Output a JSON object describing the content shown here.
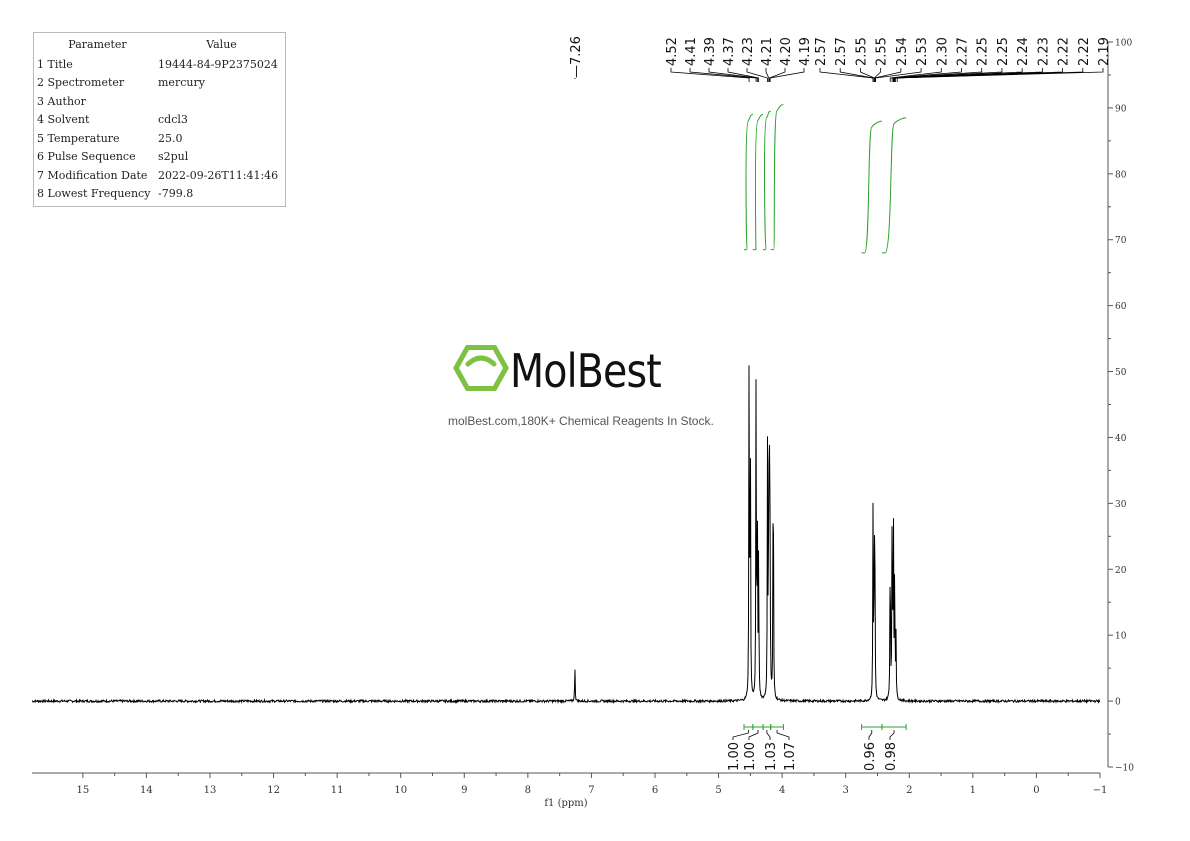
{
  "parameters": {
    "header_param": "Parameter",
    "header_value": "Value",
    "rows": [
      {
        "name": "1 Title",
        "value": "19444-84-9P2375024"
      },
      {
        "name": "2 Spectrometer",
        "value": "mercury"
      },
      {
        "name": "3 Author",
        "value": ""
      },
      {
        "name": "4 Solvent",
        "value": "cdcl3"
      },
      {
        "name": "5 Temperature",
        "value": "25.0"
      },
      {
        "name": "6 Pulse Sequence",
        "value": "s2pul"
      },
      {
        "name": "7 Modification Date",
        "value": "2022-09-26T11:41:46"
      },
      {
        "name": "8 Lowest Frequency",
        "value": "-799.8"
      }
    ]
  },
  "watermark": {
    "name": "MolBest",
    "tagline": "molBest.com,180K+ Chemical Reagents In Stock.",
    "color": "#7dc242"
  },
  "chart_data": {
    "type": "line",
    "title": "",
    "xlabel": "f1 (ppm)",
    "ylabel": "",
    "xlim": [
      15.8,
      -1.0
    ],
    "ylim": [
      -10,
      100
    ],
    "x_reversed": true,
    "x_ticks": [
      15,
      14,
      13,
      12,
      11,
      10,
      9,
      8,
      7,
      6,
      5,
      4,
      3,
      2,
      1,
      0,
      -1
    ],
    "y_ticks": [
      -10,
      0,
      10,
      20,
      30,
      40,
      50,
      60,
      70,
      80,
      90,
      100
    ],
    "grid": false,
    "line_color": "#000000",
    "integral_color": "#2ca02c",
    "peaks": [
      {
        "ppm": 7.26,
        "height": 5.5
      },
      {
        "ppm": 4.52,
        "height": 53.5
      },
      {
        "ppm": 4.5,
        "height": 43.0
      },
      {
        "ppm": 4.41,
        "height": 50.5
      },
      {
        "ppm": 4.39,
        "height": 30.0
      },
      {
        "ppm": 4.37,
        "height": 24.0
      },
      {
        "ppm": 4.23,
        "height": 37.5
      },
      {
        "ppm": 4.21,
        "height": 36.5
      },
      {
        "ppm": 4.2,
        "height": 30.0
      },
      {
        "ppm": 4.19,
        "height": 22.0
      },
      {
        "ppm": 4.14,
        "height": 45.0
      },
      {
        "ppm": 2.57,
        "height": 29.5
      },
      {
        "ppm": 2.55,
        "height": 27.0
      },
      {
        "ppm": 2.54,
        "height": 16.0
      },
      {
        "ppm": 2.3,
        "height": 26.0
      },
      {
        "ppm": 2.27,
        "height": 29.0
      },
      {
        "ppm": 2.25,
        "height": 28.5
      },
      {
        "ppm": 2.23,
        "height": 22.0
      },
      {
        "ppm": 2.21,
        "height": 10.0
      }
    ],
    "peak_labels": [
      {
        "text": "7.26",
        "ppm": 7.26
      },
      {
        "text": "4.52",
        "ppm": 4.52
      },
      {
        "text": "4.41",
        "ppm": 4.41
      },
      {
        "text": "4.39",
        "ppm": 4.39
      },
      {
        "text": "4.37",
        "ppm": 4.37
      },
      {
        "text": "4.23",
        "ppm": 4.23
      },
      {
        "text": "4.21",
        "ppm": 4.21
      },
      {
        "text": "4.20",
        "ppm": 4.2
      },
      {
        "text": "4.19",
        "ppm": 4.19
      },
      {
        "text": "2.57",
        "ppm": 2.57
      },
      {
        "text": "2.57",
        "ppm": 2.57
      },
      {
        "text": "2.55",
        "ppm": 2.55
      },
      {
        "text": "2.55",
        "ppm": 2.55
      },
      {
        "text": "2.54",
        "ppm": 2.54
      },
      {
        "text": "2.53",
        "ppm": 2.53
      },
      {
        "text": "2.30",
        "ppm": 2.3
      },
      {
        "text": "2.27",
        "ppm": 2.27
      },
      {
        "text": "2.25",
        "ppm": 2.25
      },
      {
        "text": "2.25",
        "ppm": 2.25
      },
      {
        "text": "2.24",
        "ppm": 2.24
      },
      {
        "text": "2.23",
        "ppm": 2.23
      },
      {
        "text": "2.22",
        "ppm": 2.22
      },
      {
        "text": "2.22",
        "ppm": 2.22
      },
      {
        "text": "2.19",
        "ppm": 2.19
      }
    ],
    "integrals": [
      {
        "from": 4.6,
        "to": 4.46,
        "value": "1.00",
        "y_start": 68.5,
        "y_end": 89.0
      },
      {
        "from": 4.46,
        "to": 4.3,
        "value": "1.00",
        "y_start": 68.5,
        "y_end": 89.0
      },
      {
        "from": 4.3,
        "to": 4.18,
        "value": "1.03",
        "y_start": 68.5,
        "y_end": 89.5
      },
      {
        "from": 4.18,
        "to": 3.98,
        "value": "1.07",
        "y_start": 68.5,
        "y_end": 90.5
      },
      {
        "from": 2.75,
        "to": 2.43,
        "value": "0.96",
        "y_start": 68.0,
        "y_end": 88.0
      },
      {
        "from": 2.43,
        "to": 2.05,
        "value": "0.98",
        "y_start": 68.0,
        "y_end": 88.5
      }
    ]
  }
}
